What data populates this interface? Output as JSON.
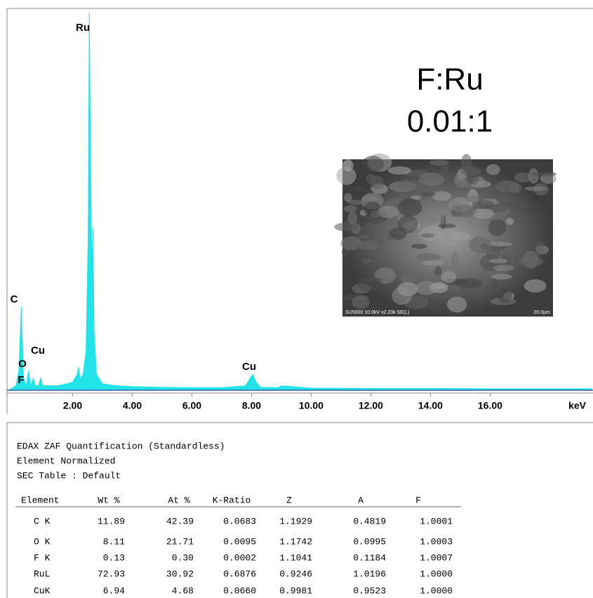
{
  "chart_data": {
    "type": "line",
    "color": "#22e3e8",
    "x": [
      -0.1,
      0.1,
      0.2,
      0.28,
      0.35,
      0.45,
      0.52,
      0.6,
      0.68,
      0.75,
      0.85,
      0.93,
      1.0,
      1.2,
      1.5,
      1.8,
      2.0,
      2.15,
      2.2,
      2.25,
      2.35,
      2.45,
      2.52,
      2.56,
      2.6,
      2.65,
      2.68,
      2.72,
      2.8,
      3.0,
      3.5,
      4.0,
      5.0,
      6.0,
      7.0,
      7.8,
      7.95,
      8.04,
      8.15,
      8.3,
      8.9,
      9.0,
      10,
      12,
      14,
      16,
      18,
      19.4
    ],
    "values": [
      0,
      1,
      5,
      22,
      3,
      1,
      5,
      1,
      3,
      1,
      1,
      3,
      1,
      1,
      1,
      1.5,
      2,
      4,
      6,
      3,
      4,
      10,
      40,
      100,
      60,
      30,
      43,
      15,
      4,
      1.5,
      1,
      0.8,
      0.6,
      0.5,
      0.5,
      1,
      3,
      4,
      2,
      0.6,
      0.5,
      1,
      0.4,
      0.3,
      0.3,
      0.2,
      0.2,
      0.2
    ],
    "xlim": [
      -0.2,
      19.45
    ],
    "ylim": [
      0,
      100
    ],
    "xticks": [
      {
        "value": 2,
        "label": "2.00"
      },
      {
        "value": 4,
        "label": "4.00"
      },
      {
        "value": 6,
        "label": "6.00"
      },
      {
        "value": 8,
        "label": "8.00"
      },
      {
        "value": 10,
        "label": "10.00"
      },
      {
        "value": 12,
        "label": "12.00"
      },
      {
        "value": 14,
        "label": "14.00"
      },
      {
        "value": 16,
        "label": "16.00"
      }
    ],
    "x_label": "keV",
    "peak_labels": [
      "Ru",
      "C",
      "Cu",
      "O",
      "F",
      "Cu"
    ],
    "ratio_title": "F:Ru",
    "ratio_value": "0.01:1",
    "sem_caption": "SU5000 10.0kV x2.20k SE(L)",
    "sem_scale": "20.0µm"
  },
  "table": {
    "title_lines": [
      "EDAX ZAF Quantification (Standardless)",
      "Element Normalized",
      "SEC Table : Default"
    ],
    "columns": [
      "Element",
      "Wt %",
      "At %",
      "K-Ratio",
      "Z",
      "A",
      "F"
    ],
    "rows": [
      [
        "C K",
        "11.89",
        "42.39",
        "0.0683",
        "1.1929",
        "0.4819",
        "1.0001"
      ],
      [
        "O K",
        "8.11",
        "21.71",
        "0.0095",
        "1.1742",
        "0.0995",
        "1.0003"
      ],
      [
        "F K",
        "0.13",
        "0.30",
        "0.0002",
        "1.1041",
        "0.1184",
        "1.0007"
      ],
      [
        "RuL",
        "72.93",
        "30.92",
        "0.6876",
        "0.9246",
        "1.0196",
        "1.0000"
      ],
      [
        "CuK",
        "6.94",
        "4.68",
        "0.0660",
        "0.9981",
        "0.9523",
        "1.0000"
      ]
    ]
  }
}
